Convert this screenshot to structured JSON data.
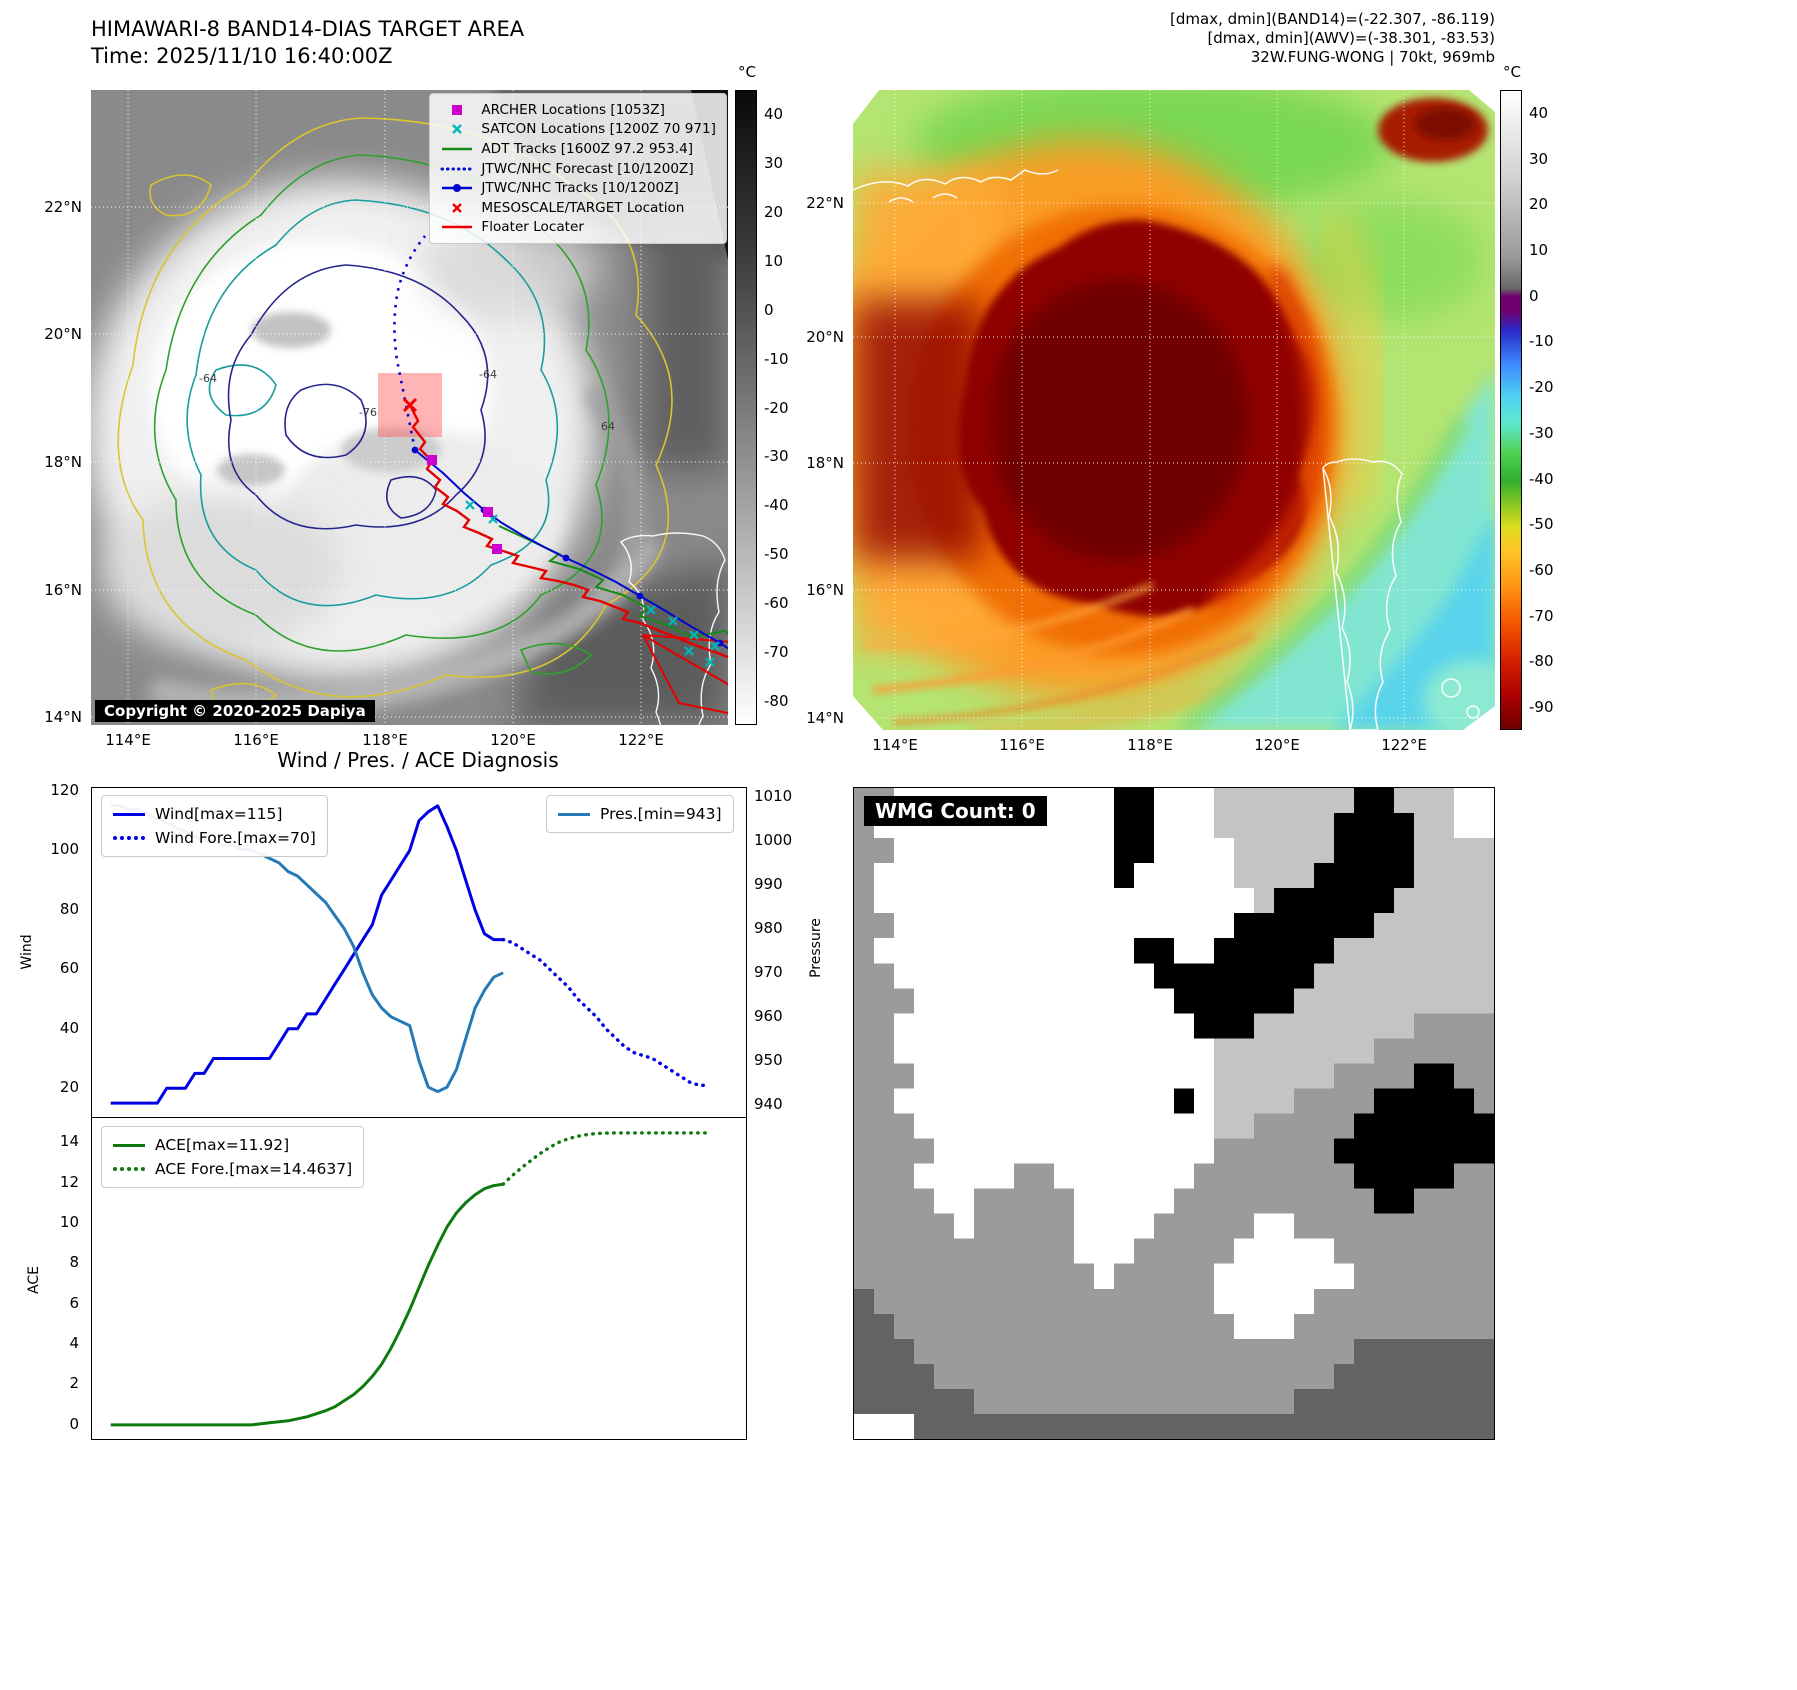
{
  "panel_tl": {
    "title": "HIMAWARI-8 BAND14-DIAS TARGET AREA",
    "subtitle": "Time: 2025/11/10 16:40:00Z",
    "copyright": "Copyright © 2020-2025 Dapiya",
    "lat_ticks": [
      "22°N",
      "20°N",
      "18°N",
      "16°N",
      "14°N"
    ],
    "lon_ticks": [
      "114°E",
      "116°E",
      "118°E",
      "120°E",
      "122°E"
    ],
    "contour_labels": [
      "-64",
      "-76",
      "-64",
      "64"
    ],
    "colorbar": {
      "unit": "°C",
      "vmax": 45,
      "vmin": -85,
      "ticks": [
        40,
        30,
        20,
        10,
        0,
        -10,
        -20,
        -30,
        -40,
        -50,
        -60,
        -70,
        -80
      ],
      "stops": [
        [
          "#0a0a0a",
          0
        ],
        [
          "#3a3a3a",
          0.25
        ],
        [
          "#7a7a7a",
          0.5
        ],
        [
          "#bdbdbd",
          0.75
        ],
        [
          "#ffffff",
          1
        ]
      ]
    },
    "legend": [
      {
        "label": "ARCHER Locations [1053Z]",
        "marker": "square",
        "color": "#cc00cc"
      },
      {
        "label": "SATCON Locations [1200Z 70 971]",
        "marker": "x",
        "color": "#00b8b8"
      },
      {
        "label": "ADT Tracks [1600Z 97.2 953.4]",
        "marker": "line",
        "color": "#168a16"
      },
      {
        "label": "JTWC/NHC Forecast [10/1200Z]",
        "marker": "dotted",
        "color": "#0008d0"
      },
      {
        "label": "JTWC/NHC Tracks [10/1200Z]",
        "marker": "line-dot",
        "color": "#0008d0"
      },
      {
        "label": "MESOSCALE/TARGET Location",
        "marker": "x",
        "color": "#ee0000"
      },
      {
        "label": "Floater Locater",
        "marker": "line",
        "color": "#ee0000"
      }
    ]
  },
  "panel_tr": {
    "header_lines": [
      "[dmax, dmin](BAND14)=(-22.307, -86.119)",
      "[dmax, dmin](AWV)=(-38.301, -83.53)",
      "32W.FUNG-WONG | 70kt, 969mb"
    ],
    "lat_ticks": [
      "22°N",
      "20°N",
      "18°N",
      "16°N",
      "14°N"
    ],
    "lon_ticks": [
      "114°E",
      "116°E",
      "118°E",
      "120°E",
      "122°E"
    ],
    "colorbar": {
      "unit": "°C",
      "vmax": 45,
      "vmin": -95,
      "ticks": [
        40,
        30,
        20,
        10,
        0,
        -10,
        -20,
        -30,
        -40,
        -50,
        -60,
        -70,
        -80,
        -90
      ],
      "stops": [
        [
          "#ffffff",
          0
        ],
        [
          "#d0d0d0",
          0.14
        ],
        [
          "#9a9a9a",
          0.26
        ],
        [
          "#686868",
          0.31
        ],
        [
          "#70006e",
          0.322
        ],
        [
          "#70006e",
          0.345
        ],
        [
          "#2a2ac8",
          0.375
        ],
        [
          "#3f8cff",
          0.43
        ],
        [
          "#4fd2f2",
          0.48
        ],
        [
          "#5fe8cf",
          0.52
        ],
        [
          "#4ed04e",
          0.57
        ],
        [
          "#2fae2f",
          0.61
        ],
        [
          "#9ccc22",
          0.655
        ],
        [
          "#e0dc20",
          0.685
        ],
        [
          "#ffc428",
          0.72
        ],
        [
          "#ff9010",
          0.78
        ],
        [
          "#f25000",
          0.84
        ],
        [
          "#d41e00",
          0.895
        ],
        [
          "#a80000",
          0.95
        ],
        [
          "#700000",
          1
        ]
      ]
    }
  },
  "charts": {
    "title": "Wind / Pres. / ACE Diagnosis"
  },
  "chart_data": [
    {
      "type": "line",
      "title": "Wind / Pres. / ACE Diagnosis",
      "xlabel": "",
      "ylabel_left": "Wind",
      "ylabel_right": "Pressure",
      "xlim": [
        -2,
        68
      ],
      "ylim_left": [
        10,
        121
      ],
      "yticks_left": [
        120,
        100,
        80,
        60,
        40,
        20
      ],
      "ylim_right": [
        937,
        1012
      ],
      "yticks_right": [
        1010,
        1000,
        990,
        980,
        970,
        960,
        950,
        940
      ],
      "grid": false,
      "series": [
        {
          "name": "Wind[max=115]",
          "axis": "left",
          "style": "solid",
          "color": "#0000e6",
          "x_start": 0,
          "values": [
            15,
            15,
            15,
            15,
            15,
            15,
            20,
            20,
            20,
            25,
            25,
            30,
            30,
            30,
            30,
            30,
            30,
            30,
            35,
            40,
            40,
            45,
            45,
            50,
            55,
            60,
            65,
            70,
            75,
            85,
            90,
            95,
            100,
            110,
            113,
            115,
            108,
            100,
            90,
            80,
            72,
            70,
            70
          ]
        },
        {
          "name": "Wind Fore.[max=70]",
          "axis": "left",
          "style": "dotted",
          "color": "#0000e6",
          "x_start": 42,
          "values": [
            70,
            69,
            67,
            65,
            63,
            60,
            57,
            54,
            50,
            47,
            44,
            40,
            37,
            34,
            32,
            31,
            30,
            28,
            26,
            24,
            22,
            21,
            21
          ]
        },
        {
          "name": "Pres.[min=943]",
          "axis": "right",
          "style": "solid",
          "color": "#2579b5",
          "x_start": 0,
          "values": [
            1008,
            1008,
            1007,
            1007,
            1006,
            1005,
            1004,
            1003,
            1002,
            1001,
            1000,
            1000,
            999,
            999,
            998,
            998,
            997,
            996,
            995,
            993,
            992,
            990,
            988,
            986,
            983,
            980,
            976,
            970,
            965,
            962,
            960,
            959,
            958,
            950,
            944,
            943,
            944,
            948,
            955,
            962,
            966,
            969,
            970
          ]
        }
      ]
    },
    {
      "type": "line",
      "xlabel": "",
      "ylabel_left": "ACE",
      "xlim": [
        -2,
        68
      ],
      "ylim_left": [
        -0.7,
        15.2
      ],
      "yticks_left": [
        14,
        12,
        10,
        8,
        6,
        4,
        2,
        0
      ],
      "grid": false,
      "series": [
        {
          "name": "ACE[max=11.92]",
          "axis": "left",
          "style": "solid",
          "color": "#0e7a0e",
          "x_start": 0,
          "values": [
            0,
            0,
            0,
            0,
            0,
            0,
            0,
            0,
            0,
            0,
            0,
            0,
            0,
            0,
            0,
            0,
            0.05,
            0.1,
            0.15,
            0.2,
            0.3,
            0.4,
            0.55,
            0.7,
            0.9,
            1.2,
            1.5,
            1.9,
            2.4,
            3.0,
            3.8,
            4.7,
            5.7,
            6.8,
            7.9,
            8.9,
            9.8,
            10.5,
            11.0,
            11.4,
            11.7,
            11.85,
            11.92
          ]
        },
        {
          "name": "ACE Fore.[max=14.4637]",
          "axis": "left",
          "style": "dotted",
          "color": "#0e7a0e",
          "x_start": 42,
          "values": [
            11.92,
            12.35,
            12.75,
            13.1,
            13.45,
            13.75,
            14.0,
            14.18,
            14.3,
            14.38,
            14.43,
            14.45,
            14.4637,
            14.4637,
            14.4637,
            14.4637,
            14.4637,
            14.4637,
            14.4637,
            14.4637,
            14.4637,
            14.4637,
            14.4637
          ]
        }
      ]
    }
  ],
  "panel_br": {
    "label": "WMG Count: 0",
    "palette": {
      "W": "#ffffff",
      "L": "#c4c4c4",
      "m": "#9b9b9b",
      "d": "#636363",
      "B": "#000000"
    },
    "grid": [
      "mmWWWWWWWWWWWBBWWWLLLLLLLBBLLLWW",
      "mWWWWWWWWWWWWBBWWWLLLLLLBBBBLLWW",
      "mmWWWWWWWWWWWBBWWWWLLLLLBBBBLLLL",
      "mWWWWWWWWWWWWBWWWWWLLLLBBBBBLLLL",
      "mWWWWWWWWWWWWWWWWWWWLBBBBBBLLLLL",
      "mmWWWWWWWWWWWWWWWWWBBBBBBBLLLLLL",
      "mWWWWWWWWWWWWWBBWWBBBBBBLLLLLLLL",
      "mmWWWWWWWWWWWWWBBBBBBBBLLLLLLLLL",
      "mmmWWWWWWWWWWWWWBBBBBBLLLLLLLLLL",
      "mmWWWWWWWWWWWWWWWBBBLLLLLLLLmmmm",
      "mmWWWWWWWWWWWWWWWWLLLLLLLLmmmmmm",
      "mmmWWWWWWWWWWWWWWWLLLLLLmmmmBBmm",
      "mmWWWWWWWWWWWWWWBWLLLLmmmmBBBBBm",
      "mmmWWWWWWWWWWWWWWWLLmmmmmBBBBBBB",
      "mmmmWWWWWWWWWWWWWWmmmmmmBBBBBBBB",
      "mmmWWWWWmmWWWWWWWmmmmmmmmBBBBBmm",
      "mmmmWWmmmmmWWWWWmmmmmmmmmmBBmmmm",
      "mmmmmWmmmmmWWWWmmmmmWWmmmmmmmmmm",
      "mmmmmmmmmmmWWWmmmmmWWWWWmmmmmmmm",
      "mmmmmmmmmmmmWmmmmmWWWWWWWmmmmmmm",
      "dmmmmmmmmmmmmmmmmmWWWWWmmmmmmmmm",
      "ddmmmmmmmmmmmmmmmmmWWWmmmmmmmmmm",
      "dddmmmmmmmmmmmmmmmmmmmmmmddddddd",
      "ddddmmmmmmmmmmmmmmmmmmmmdddddddd",
      "ddddddmmmmmmmmmmmmmmmmdddddddddd",
      "WWWddddddddddddddddddddddddddddd"
    ]
  }
}
